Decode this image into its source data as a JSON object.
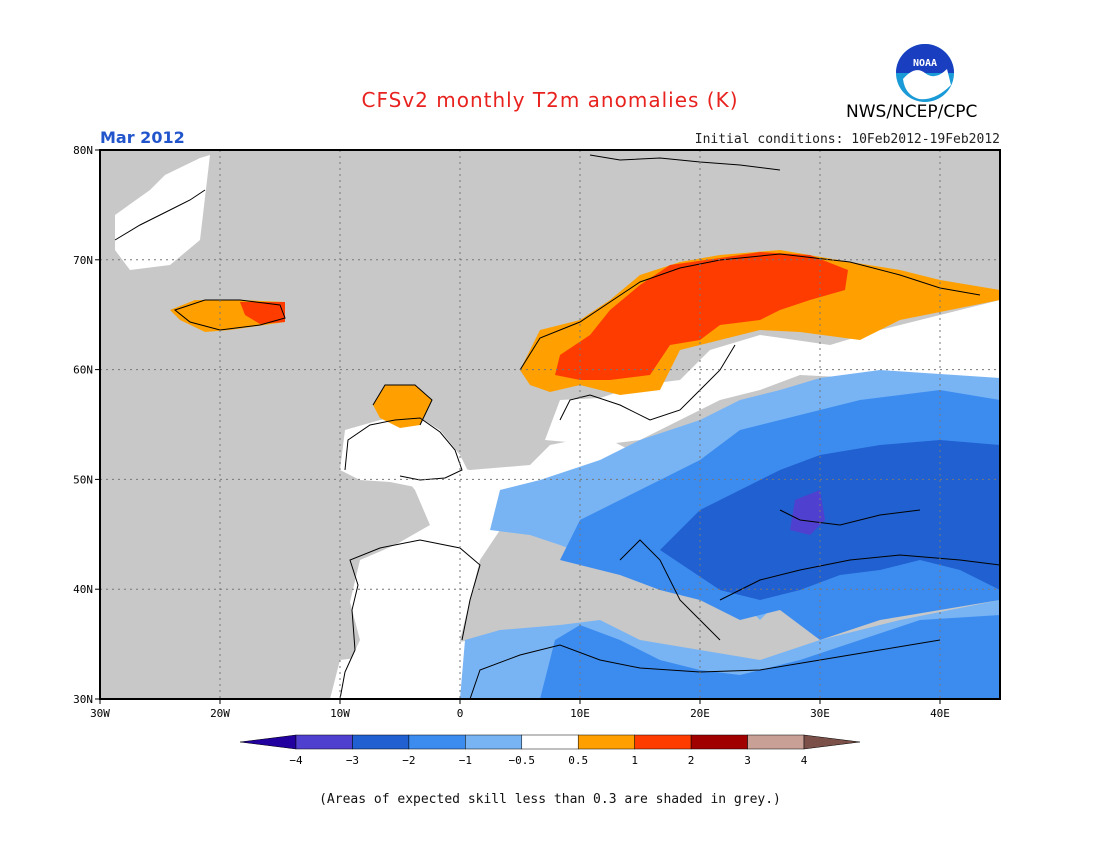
{
  "header": {
    "title": "CFSv2 monthly T2m anomalies (K)",
    "org": "NWS/NCEP/CPC",
    "logo_text": "NOAA",
    "month": "Mar 2012",
    "initial_conditions": "Initial conditions: 10Feb2012-19Feb2012"
  },
  "map": {
    "lon_range": [
      -30,
      45
    ],
    "lat_range": [
      30,
      80
    ],
    "lon_ticks": [
      {
        "value": -30,
        "label": "30W"
      },
      {
        "value": -20,
        "label": "20W"
      },
      {
        "value": -10,
        "label": "10W"
      },
      {
        "value": 0,
        "label": "0"
      },
      {
        "value": 10,
        "label": "10E"
      },
      {
        "value": 20,
        "label": "20E"
      },
      {
        "value": 30,
        "label": "30E"
      },
      {
        "value": 40,
        "label": "40E"
      }
    ],
    "lat_ticks": [
      {
        "value": 30,
        "label": "30N"
      },
      {
        "value": 40,
        "label": "40N"
      },
      {
        "value": 50,
        "label": "50N"
      },
      {
        "value": 60,
        "label": "60N"
      },
      {
        "value": 70,
        "label": "70N"
      },
      {
        "value": 80,
        "label": "80N"
      }
    ],
    "grid": "dotted",
    "no_skill_color": "#c8c8c8"
  },
  "colorbar": {
    "colors": [
      "#2200a0",
      "#5040d0",
      "#2060d0",
      "#3c8cf0",
      "#78b4f4",
      "#ffffff",
      "#ffa000",
      "#ff3c00",
      "#a00000",
      "#c8a096",
      "#7a5048"
    ],
    "labels": [
      "−4",
      "−3",
      "−2",
      "−1",
      "−0.5",
      "0.5",
      "1",
      "2",
      "3",
      "4"
    ]
  },
  "regions": [
    {
      "name": "southern-scandinavia-warm",
      "category": "+1 to +2",
      "lon": [
        9,
        20
      ],
      "lat": [
        58,
        67
      ]
    },
    {
      "name": "northern-scandinavia-warm",
      "category": "+1 to +2",
      "lon": [
        17,
        32
      ],
      "lat": [
        65,
        71
      ]
    },
    {
      "name": "iceland-warm",
      "category": "+0.5 to +2",
      "lon": [
        -24,
        -13
      ],
      "lat": [
        63,
        67
      ]
    },
    {
      "name": "scotland-warm",
      "category": "+0.5 to +1",
      "lon": [
        -7,
        -2
      ],
      "lat": [
        55,
        59
      ]
    },
    {
      "name": "eastern-europe-cold",
      "category": "-2 to -3",
      "lon": [
        20,
        45
      ],
      "lat": [
        42,
        55
      ]
    },
    {
      "name": "ukraine-cold-core",
      "category": "-3 to -4",
      "lon": [
        27,
        31
      ],
      "lat": [
        46,
        49
      ]
    },
    {
      "name": "north-africa-cool",
      "category": "-0.5 to -2",
      "lon": [
        0,
        45
      ],
      "lat": [
        30,
        37
      ]
    }
  ],
  "footer": {
    "note": "(Areas of expected skill less than 0.3 are shaded in grey.)"
  }
}
